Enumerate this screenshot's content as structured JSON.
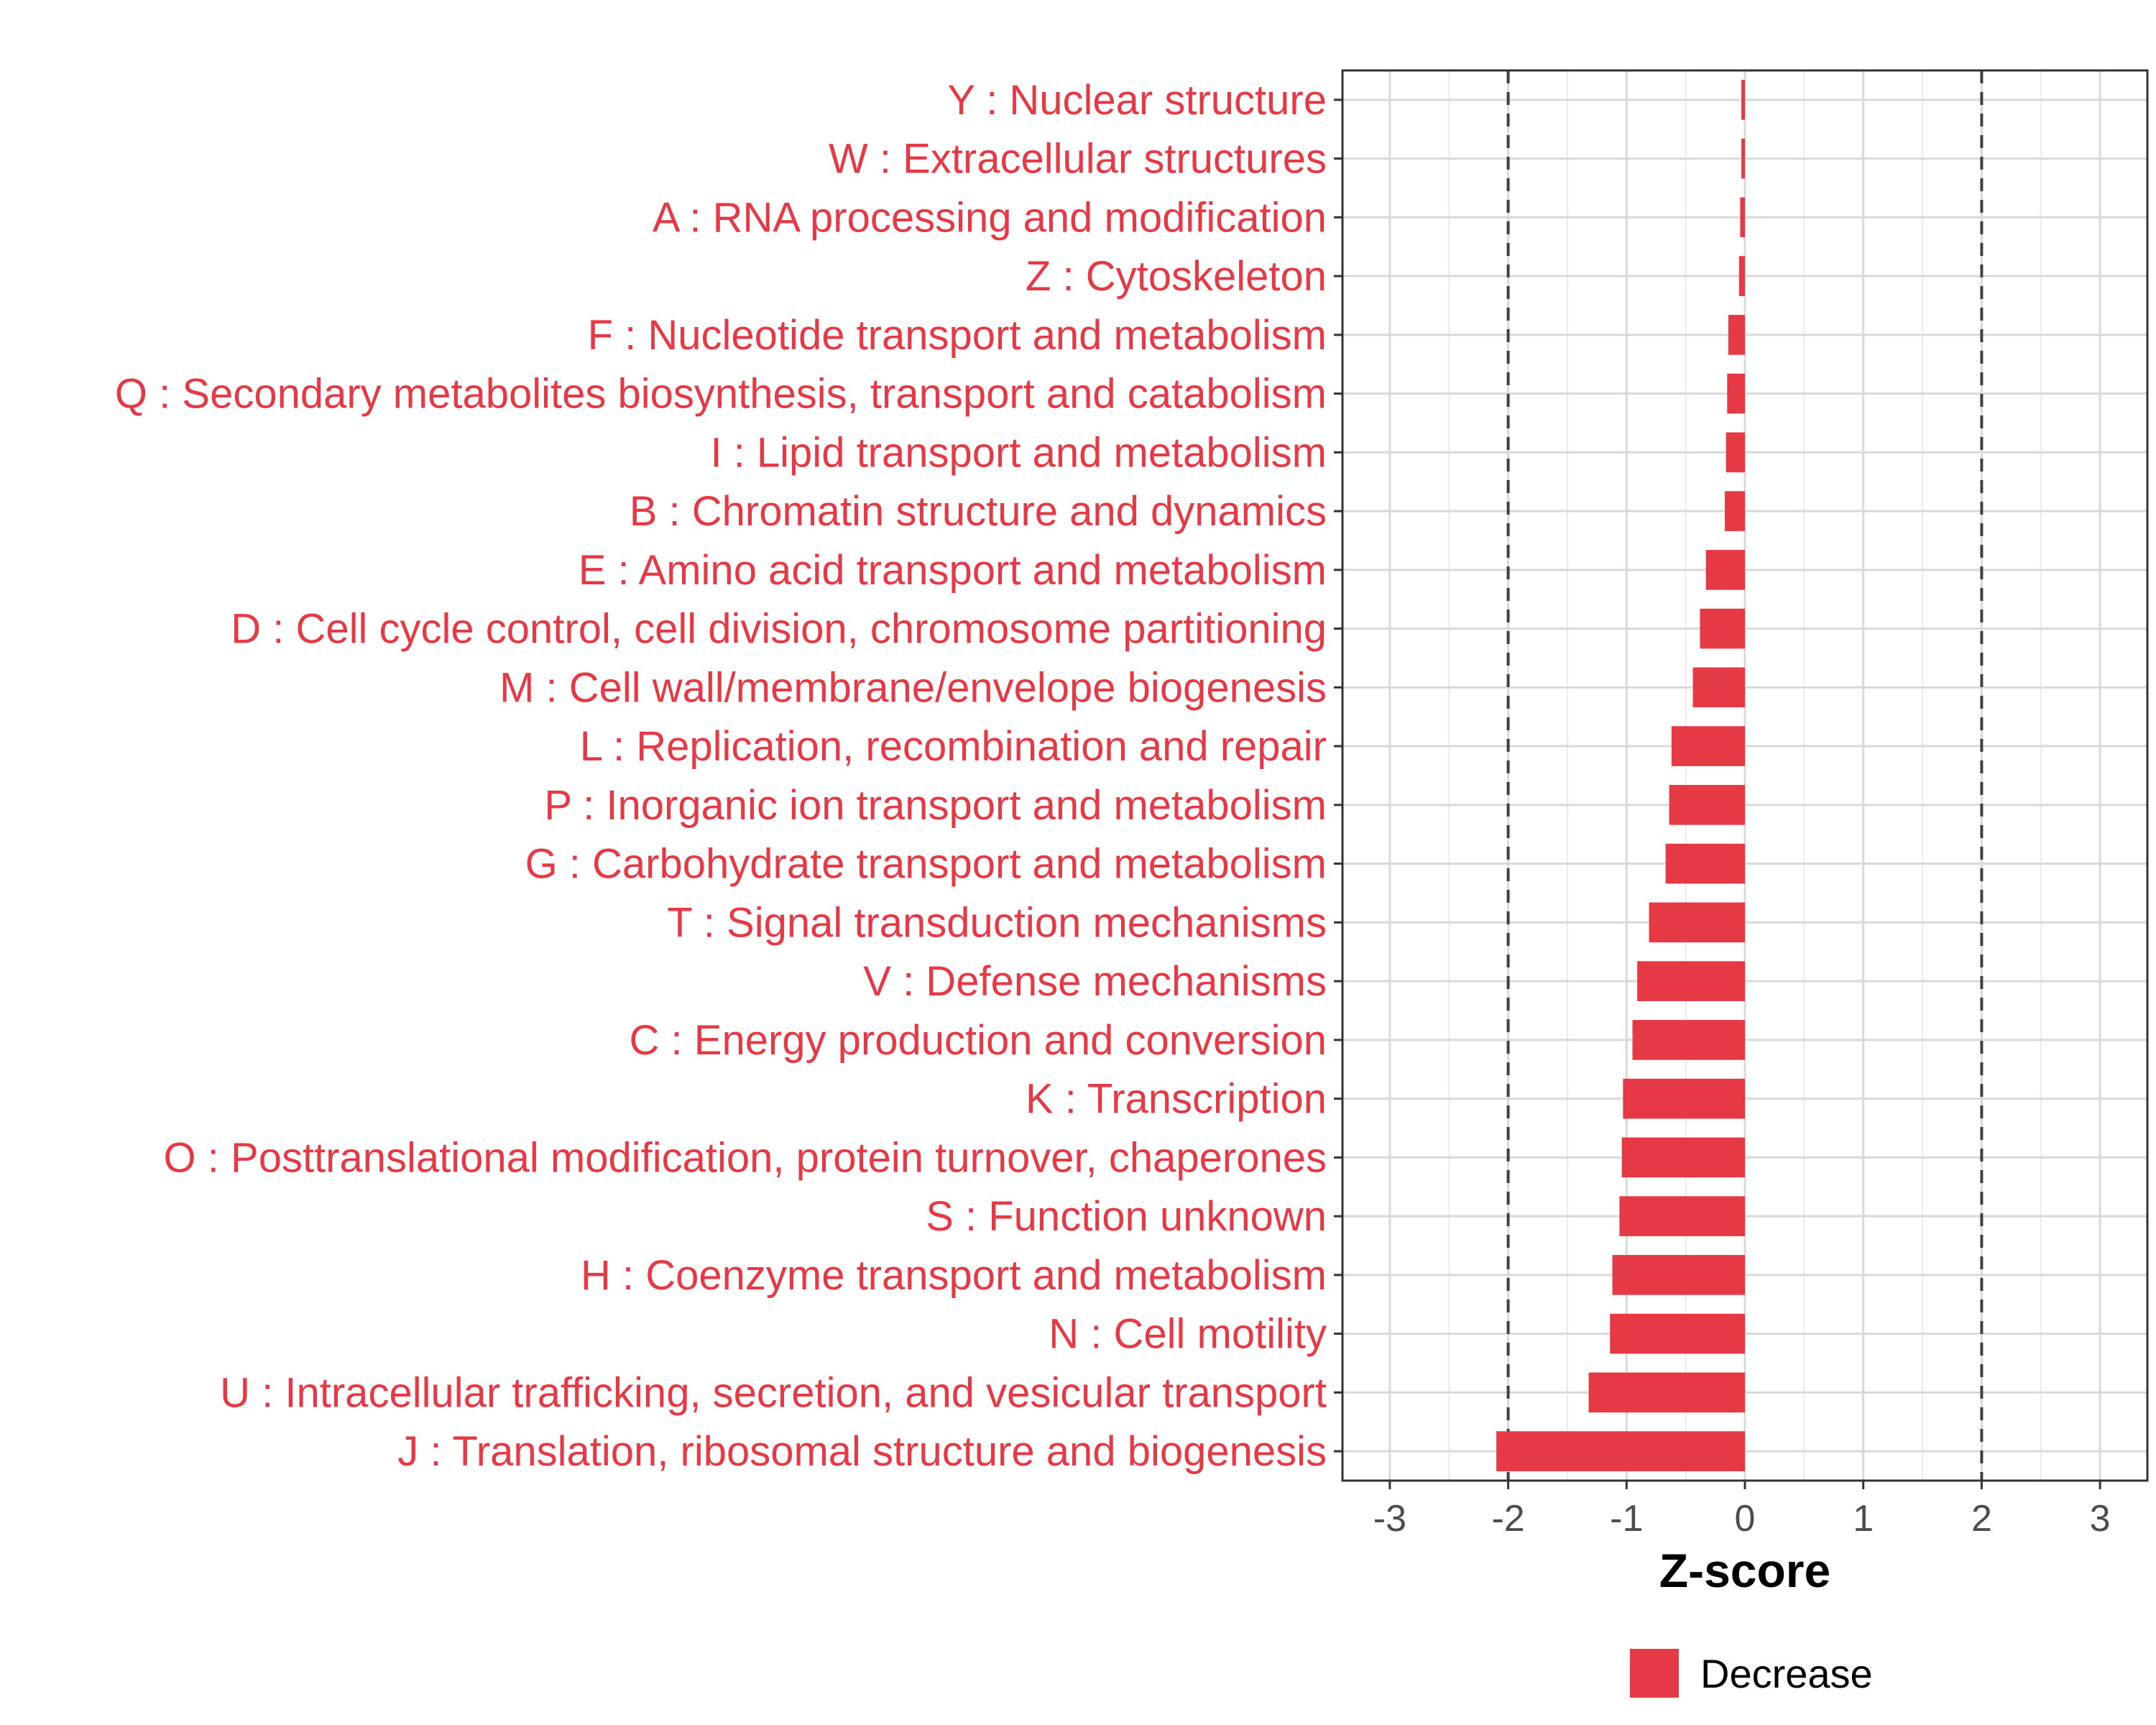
{
  "chart_data": {
    "type": "bar",
    "orientation": "horizontal",
    "xlabel": "Z-score",
    "xlim": [
      -3.4,
      3.4
    ],
    "x_ticks": [
      -3,
      -2,
      -1,
      0,
      1,
      2,
      3
    ],
    "x_tick_labels": [
      "-3",
      "-2",
      "-1",
      "0",
      "1",
      "2",
      "3"
    ],
    "threshold_lines": [
      -2,
      2
    ],
    "grid": true,
    "categories": [
      "Y : Nuclear structure",
      "W : Extracellular structures",
      "A : RNA processing and modification",
      "Z : Cytoskeleton",
      "F : Nucleotide transport and metabolism",
      "Q : Secondary metabolites biosynthesis, transport and catabolism",
      "I : Lipid transport and metabolism",
      "B : Chromatin structure and dynamics",
      "E : Amino acid transport and metabolism",
      "D : Cell cycle control, cell division, chromosome partitioning",
      "M : Cell wall/membrane/envelope biogenesis",
      "L : Replication, recombination and repair",
      "P : Inorganic ion transport and metabolism",
      "G : Carbohydrate transport and metabolism",
      "T : Signal transduction mechanisms",
      "V : Defense mechanisms",
      "C : Energy production and conversion",
      "K : Transcription",
      "O : Posttranslational modification, protein turnover, chaperones",
      "S : Function unknown",
      "H : Coenzyme transport and metabolism",
      "N : Cell motility",
      "U : Intracellular trafficking, secretion, and vesicular transport",
      "J : Translation, ribosomal structure and biogenesis"
    ],
    "series": [
      {
        "name": "Decrease",
        "color": "#e63946",
        "values": [
          -0.03,
          -0.03,
          -0.04,
          -0.05,
          -0.14,
          -0.15,
          -0.16,
          -0.17,
          -0.33,
          -0.38,
          -0.44,
          -0.62,
          -0.64,
          -0.67,
          -0.81,
          -0.91,
          -0.95,
          -1.03,
          -1.04,
          -1.06,
          -1.12,
          -1.14,
          -1.32,
          -2.1
        ]
      }
    ],
    "legend": {
      "position": "bottom",
      "entries": [
        "Decrease"
      ]
    }
  }
}
